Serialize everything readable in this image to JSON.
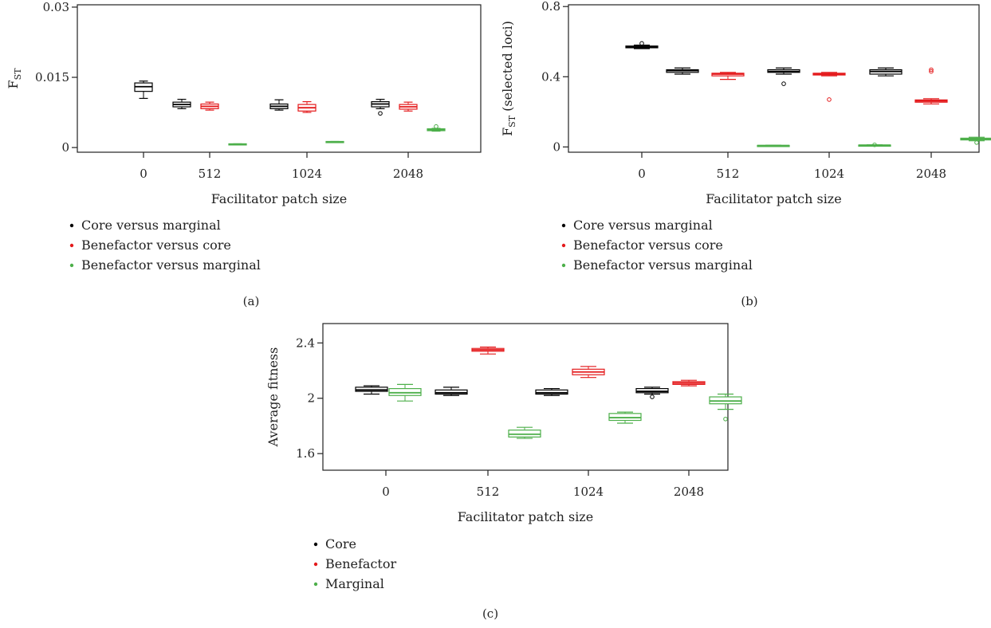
{
  "chart_data": [
    {
      "type": "box",
      "panel_label": "(a)",
      "xlabel": "Facilitator patch size",
      "ylabel": "F_ST",
      "categories": [
        "0",
        "512",
        "1024",
        "2048"
      ],
      "ylim": [
        -0.001,
        0.0305
      ],
      "yticks": [
        "0",
        "0.015",
        "0.03"
      ],
      "ytick_values": [
        0,
        0.015,
        0.03
      ],
      "legend_placement": "below",
      "series": [
        {
          "name": "Core versus marginal",
          "color": "#000000",
          "boxes": [
            {
              "min": 0.0105,
              "q1": 0.012,
              "median": 0.013,
              "q3": 0.0138,
              "max": 0.0142,
              "outliers": []
            },
            {
              "min": 0.0083,
              "q1": 0.0087,
              "median": 0.0092,
              "q3": 0.0097,
              "max": 0.0103,
              "outliers": []
            },
            {
              "min": 0.008,
              "q1": 0.0083,
              "median": 0.0088,
              "q3": 0.0093,
              "max": 0.0102,
              "outliers": []
            },
            {
              "min": 0.0083,
              "q1": 0.0087,
              "median": 0.0093,
              "q3": 0.0098,
              "max": 0.0103,
              "outliers": [
                0.0073
              ]
            }
          ]
        },
        {
          "name": "Benefactor versus core",
          "color": "#e41a1c",
          "boxes": [
            null,
            {
              "min": 0.008,
              "q1": 0.0083,
              "median": 0.0088,
              "q3": 0.0093,
              "max": 0.0097,
              "outliers": []
            },
            {
              "min": 0.0075,
              "q1": 0.0078,
              "median": 0.0085,
              "q3": 0.0092,
              "max": 0.0098,
              "outliers": []
            },
            {
              "min": 0.0078,
              "q1": 0.0082,
              "median": 0.0087,
              "q3": 0.0092,
              "max": 0.0097,
              "outliers": []
            }
          ]
        },
        {
          "name": "Benefactor versus marginal",
          "color": "#4daf4a",
          "boxes": [
            null,
            {
              "min": 0.0006,
              "q1": 0.0007,
              "median": 0.0007,
              "q3": 0.0008,
              "max": 0.0008,
              "outliers": []
            },
            {
              "min": 0.0011,
              "q1": 0.0011,
              "median": 0.0012,
              "q3": 0.0013,
              "max": 0.0013,
              "outliers": []
            },
            {
              "min": 0.0035,
              "q1": 0.0036,
              "median": 0.0038,
              "q3": 0.004,
              "max": 0.0041,
              "outliers": [
                0.0045
              ]
            }
          ]
        }
      ]
    },
    {
      "type": "box",
      "panel_label": "(b)",
      "xlabel": "Facilitator patch size",
      "ylabel": "F_ST (selected loci)",
      "categories": [
        "0",
        "512",
        "1024",
        "2048"
      ],
      "ylim": [
        -0.03,
        0.81
      ],
      "yticks": [
        "0",
        "0.4",
        "0.8"
      ],
      "ytick_values": [
        0,
        0.4,
        0.8
      ],
      "legend_placement": "below",
      "series": [
        {
          "name": "Core versus marginal",
          "color": "#000000",
          "boxes": [
            {
              "min": 0.56,
              "q1": 0.565,
              "median": 0.57,
              "q3": 0.575,
              "max": 0.58,
              "outliers": [
                0.59
              ]
            },
            {
              "min": 0.415,
              "q1": 0.425,
              "median": 0.435,
              "q3": 0.44,
              "max": 0.45,
              "outliers": []
            },
            {
              "min": 0.415,
              "q1": 0.425,
              "median": 0.43,
              "q3": 0.44,
              "max": 0.45,
              "outliers": [
                0.36
              ]
            },
            {
              "min": 0.405,
              "q1": 0.415,
              "median": 0.43,
              "q3": 0.44,
              "max": 0.45,
              "outliers": []
            }
          ]
        },
        {
          "name": "Benefactor versus core",
          "color": "#e41a1c",
          "boxes": [
            null,
            {
              "min": 0.385,
              "q1": 0.405,
              "median": 0.415,
              "q3": 0.42,
              "max": 0.425,
              "outliers": []
            },
            {
              "min": 0.405,
              "q1": 0.41,
              "median": 0.415,
              "q3": 0.42,
              "max": 0.425,
              "outliers": [
                0.27
              ]
            },
            {
              "min": 0.245,
              "q1": 0.255,
              "median": 0.262,
              "q3": 0.268,
              "max": 0.275,
              "outliers": [
                0.43,
                0.44
              ]
            }
          ]
        },
        {
          "name": "Benefactor versus marginal",
          "color": "#4daf4a",
          "boxes": [
            null,
            {
              "min": 0.004,
              "q1": 0.006,
              "median": 0.008,
              "q3": 0.009,
              "max": 0.01,
              "outliers": []
            },
            {
              "min": 0.008,
              "q1": 0.009,
              "median": 0.01,
              "q3": 0.011,
              "max": 0.012,
              "outliers": [
                0.012
              ]
            },
            {
              "min": 0.035,
              "q1": 0.04,
              "median": 0.045,
              "q3": 0.05,
              "max": 0.055,
              "outliers": [
                0.025
              ]
            }
          ]
        }
      ]
    },
    {
      "type": "box",
      "panel_label": "(c)",
      "xlabel": "Facilitator patch size",
      "ylabel": "Average fitness",
      "categories": [
        "0",
        "512",
        "1024",
        "2048"
      ],
      "ylim": [
        1.48,
        2.54
      ],
      "yticks": [
        "1.6",
        "2",
        "2.4"
      ],
      "ytick_values": [
        1.6,
        2.0,
        2.4
      ],
      "legend_placement": "below",
      "series": [
        {
          "name": "Core",
          "color": "#000000",
          "boxes": [
            {
              "min": 2.03,
              "q1": 2.05,
              "median": 2.06,
              "q3": 2.08,
              "max": 2.09,
              "outliers": []
            },
            {
              "min": 2.02,
              "q1": 2.03,
              "median": 2.04,
              "q3": 2.06,
              "max": 2.08,
              "outliers": []
            },
            {
              "min": 2.02,
              "q1": 2.03,
              "median": 2.04,
              "q3": 2.06,
              "max": 2.07,
              "outliers": []
            },
            {
              "min": 2.03,
              "q1": 2.04,
              "median": 2.05,
              "q3": 2.07,
              "max": 2.08,
              "outliers": [
                2.01
              ]
            }
          ]
        },
        {
          "name": "Benefactor",
          "color": "#e41a1c",
          "boxes": [
            null,
            {
              "min": 2.32,
              "q1": 2.34,
              "median": 2.35,
              "q3": 2.36,
              "max": 2.37,
              "outliers": []
            },
            {
              "min": 2.15,
              "q1": 2.17,
              "median": 2.19,
              "q3": 2.21,
              "max": 2.23,
              "outliers": []
            },
            {
              "min": 2.09,
              "q1": 2.1,
              "median": 2.11,
              "q3": 2.12,
              "max": 2.13,
              "outliers": []
            }
          ]
        },
        {
          "name": "Marginal",
          "color": "#4daf4a",
          "boxes": [
            {
              "min": 1.98,
              "q1": 2.02,
              "median": 2.04,
              "q3": 2.07,
              "max": 2.1,
              "outliers": []
            },
            {
              "min": 1.71,
              "q1": 1.72,
              "median": 1.74,
              "q3": 1.77,
              "max": 1.79,
              "outliers": []
            },
            {
              "min": 1.82,
              "q1": 1.84,
              "median": 1.86,
              "q3": 1.89,
              "max": 1.9,
              "outliers": []
            },
            {
              "min": 1.92,
              "q1": 1.96,
              "median": 1.98,
              "q3": 2.01,
              "max": 2.03,
              "outliers": [
                1.85
              ]
            }
          ]
        }
      ]
    }
  ]
}
